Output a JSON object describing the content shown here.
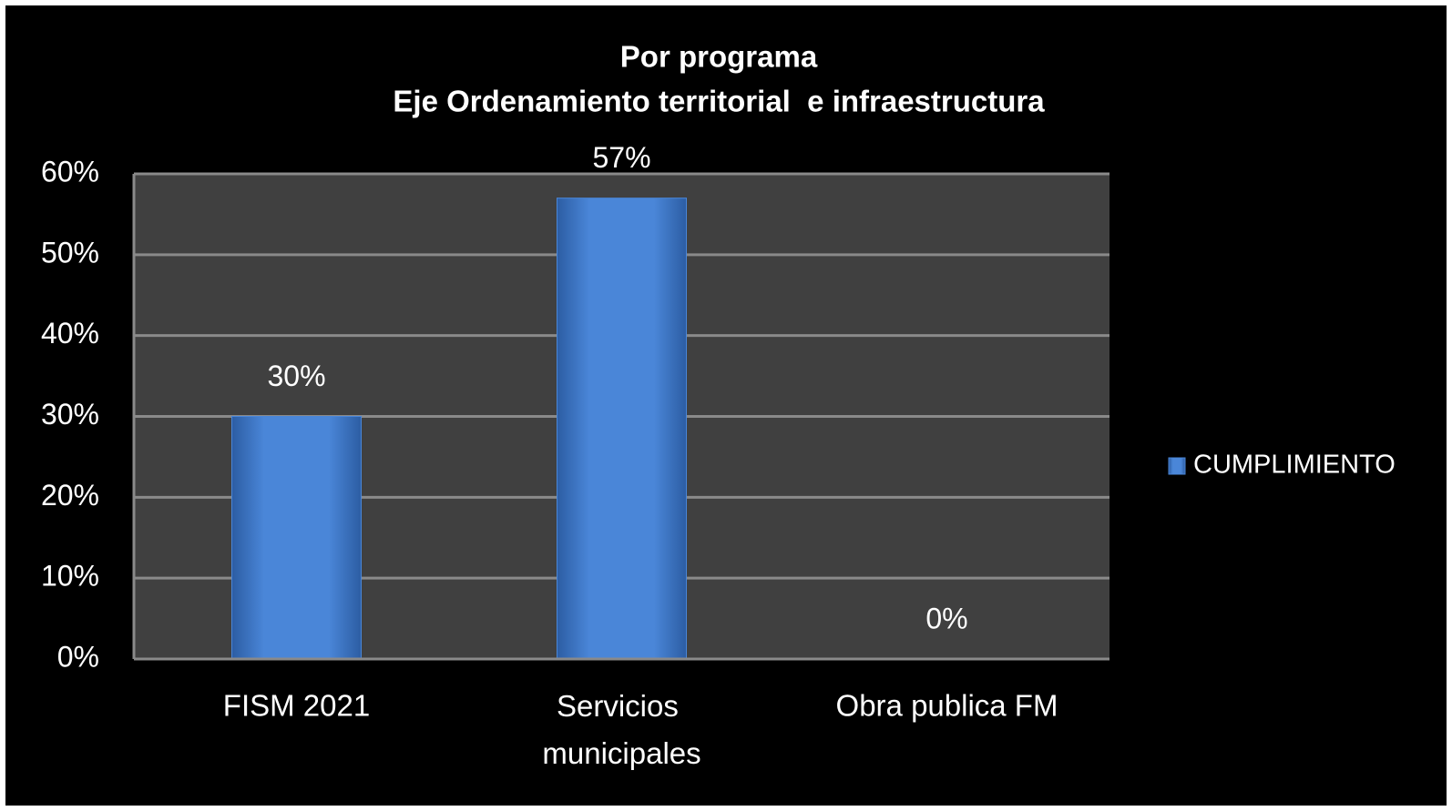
{
  "chart_data": {
    "type": "bar",
    "title": "Por programa",
    "subtitle": "Eje Ordenamiento territorial  e infraestructura",
    "categories": [
      "FISM 2021",
      "Servicios municipales",
      "Obra publica FM"
    ],
    "series": [
      {
        "name": "CUMPLIMIENTO",
        "color": "#4a86d8",
        "values": [
          30,
          57,
          0
        ],
        "value_labels": [
          "30%",
          "57%",
          "0%"
        ]
      }
    ],
    "ylim": [
      0,
      60
    ],
    "yticks": [
      {
        "value": 0,
        "label": "0%"
      },
      {
        "value": 10,
        "label": "10%"
      },
      {
        "value": 20,
        "label": "20%"
      },
      {
        "value": 30,
        "label": "30%"
      },
      {
        "value": 40,
        "label": "40%"
      },
      {
        "value": 50,
        "label": "50%"
      },
      {
        "value": 60,
        "label": "60%"
      }
    ],
    "grid": true,
    "legend": "right"
  }
}
